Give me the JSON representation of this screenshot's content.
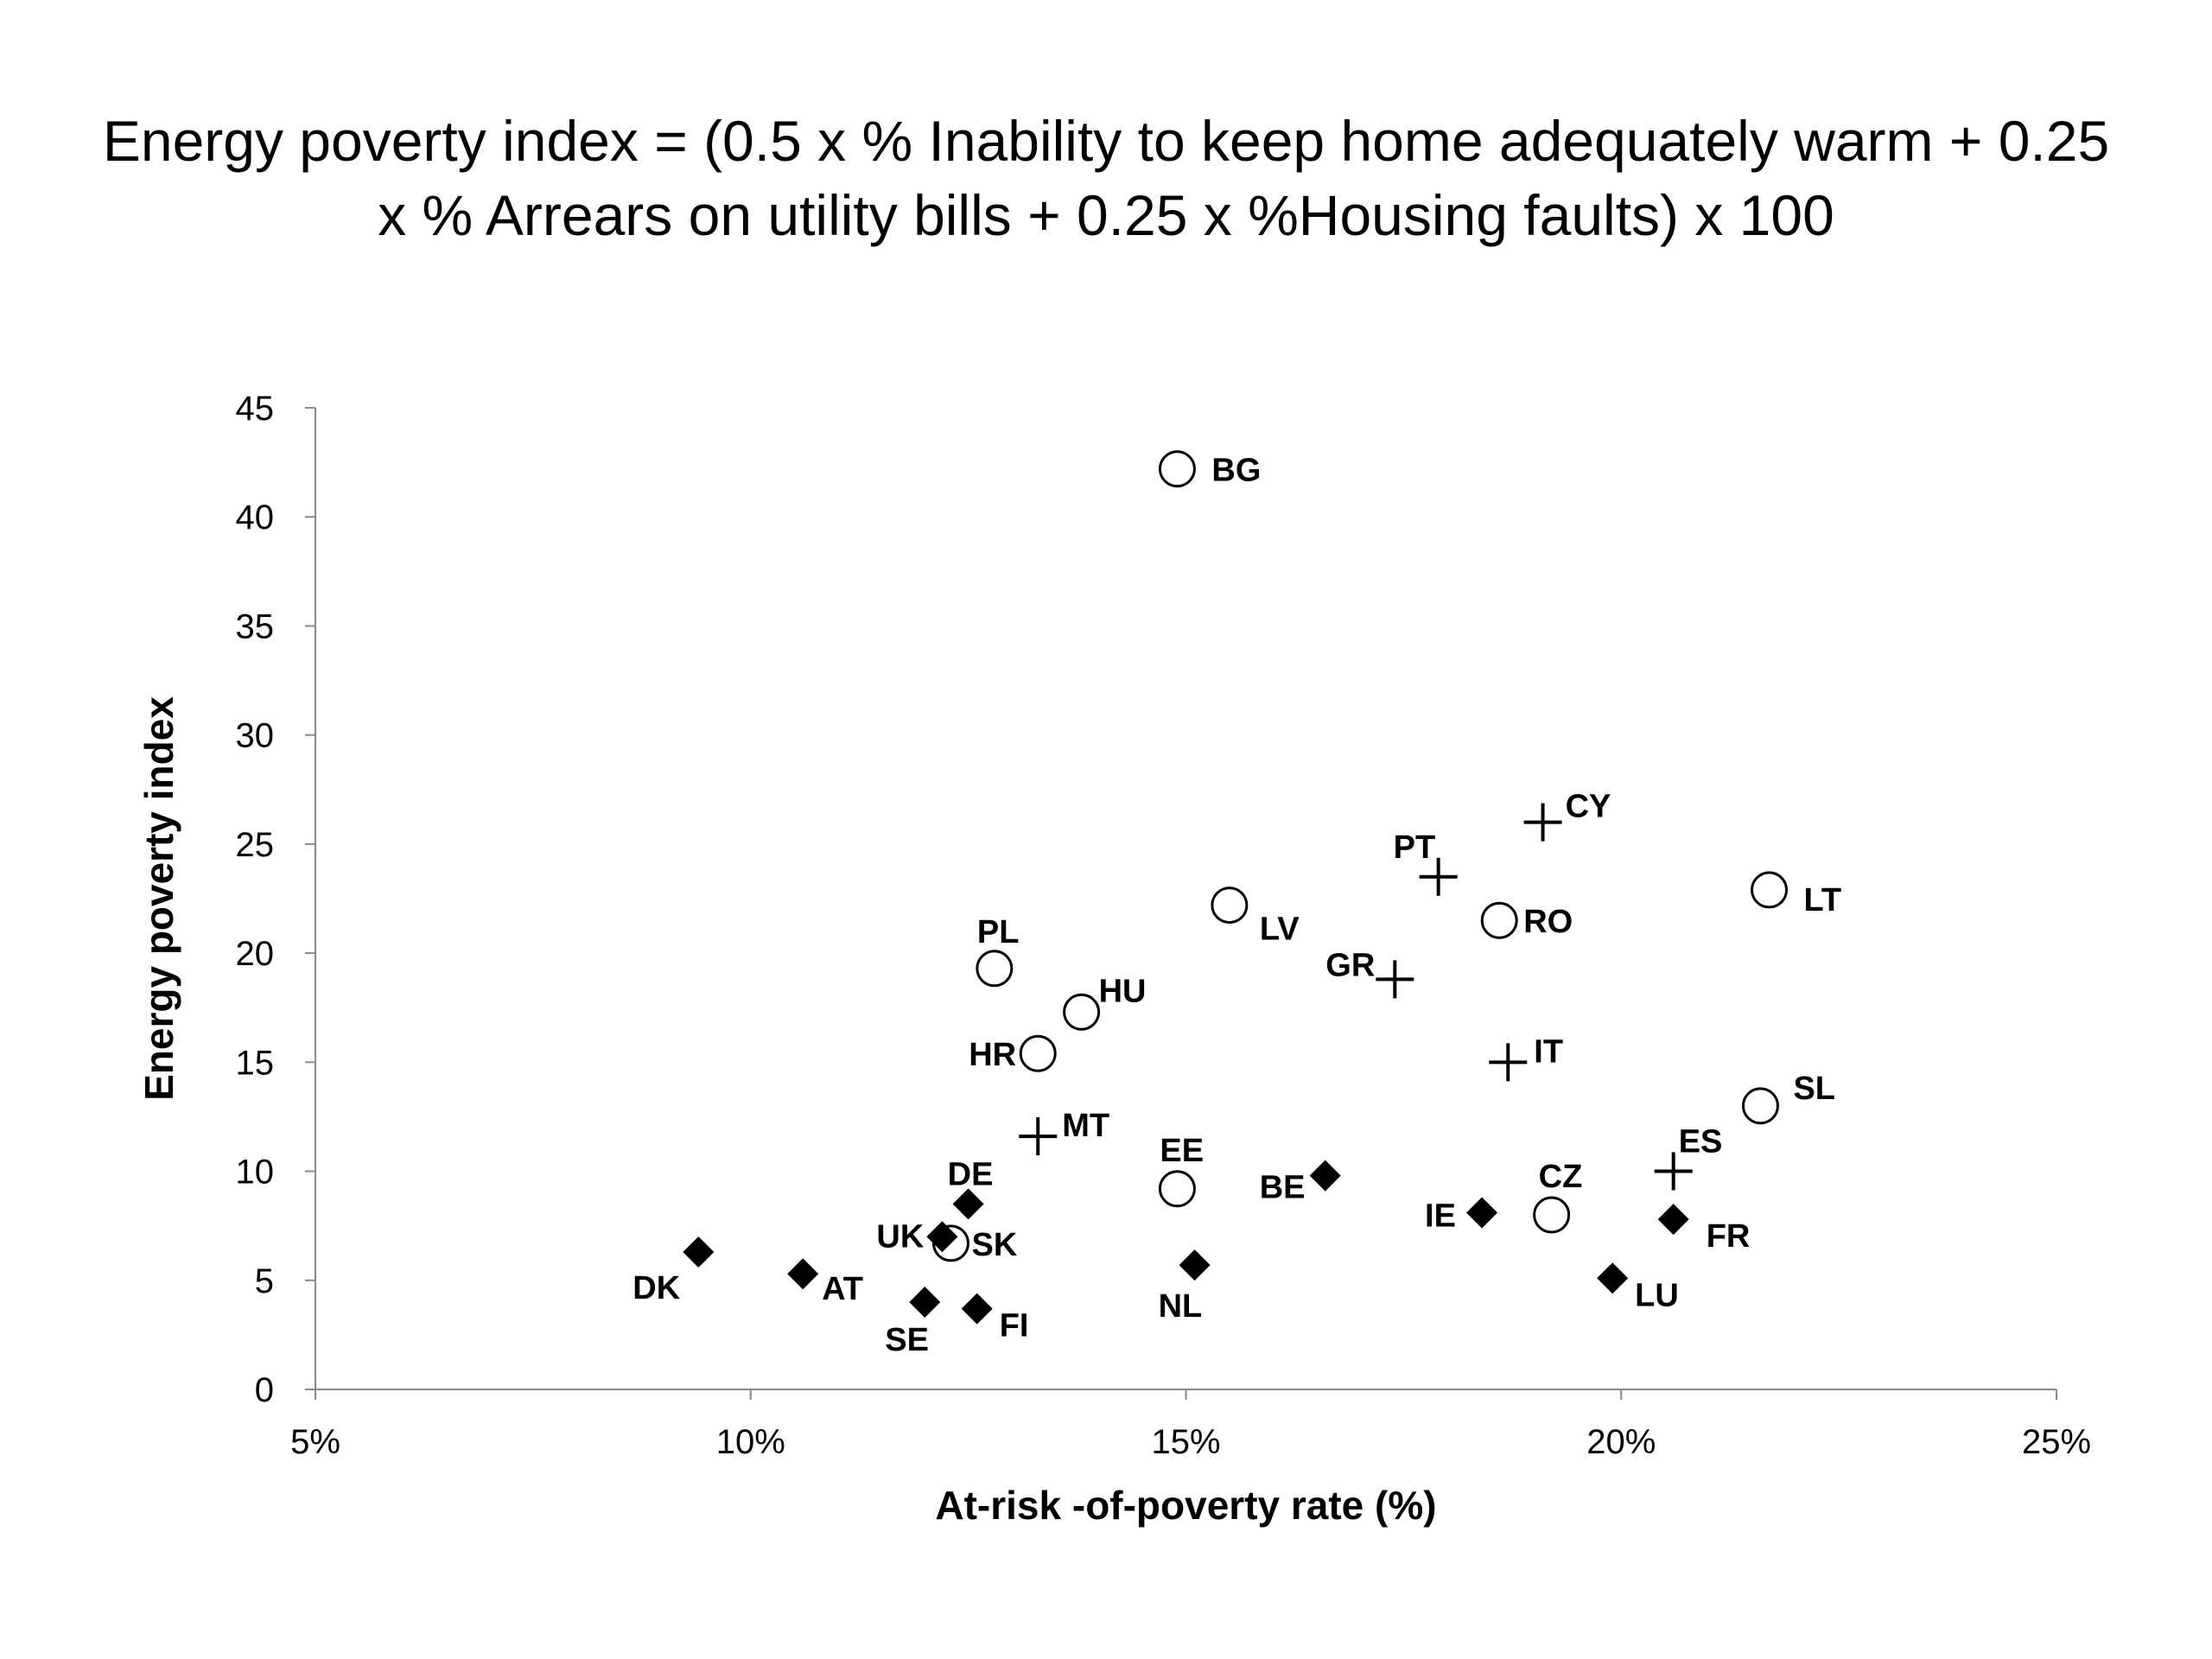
{
  "title_lines": [
    "Energy poverty index = (0.5 x % Inability to keep home adequately warm + 0.25",
    "x % Arrears on utility bills + 0.25 x %Housing faults) x 100"
  ],
  "chart_data": {
    "type": "scatter",
    "title": "Energy poverty index = (0.5 x % Inability to keep home adequately warm + 0.25 x % Arrears on utility bills + 0.25 x %Housing faults) x 100",
    "xlabel": "At-risk -of-poverty rate (%)",
    "ylabel": "Energy poverty index",
    "xlim": [
      5,
      25
    ],
    "ylim": [
      0,
      45
    ],
    "x_ticks": [
      5,
      10,
      15,
      20,
      25
    ],
    "x_tick_labels": [
      "5%",
      "10%",
      "15%",
      "20%",
      "25%"
    ],
    "y_ticks": [
      0,
      5,
      10,
      15,
      20,
      25,
      30,
      35,
      40,
      45
    ],
    "grid": false,
    "legend": "none",
    "marker_styles": {
      "circle": "open-circle",
      "plus": "plus",
      "diamond": "filled-diamond"
    },
    "points": [
      {
        "label": "BG",
        "x": 14.9,
        "y": 42.2,
        "marker": "circle",
        "lx": 40,
        "ly": 14
      },
      {
        "label": "LT",
        "x": 21.7,
        "y": 22.9,
        "marker": "circle",
        "lx": 40,
        "ly": 24
      },
      {
        "label": "LV",
        "x": 15.5,
        "y": 22.2,
        "marker": "circle",
        "lx": 35,
        "ly": 40
      },
      {
        "label": "RO",
        "x": 18.6,
        "y": 21.5,
        "marker": "circle",
        "lx": 28,
        "ly": 14
      },
      {
        "label": "PL",
        "x": 12.8,
        "y": 19.3,
        "marker": "circle",
        "lx": -20,
        "ly": -30
      },
      {
        "label": "HU",
        "x": 13.8,
        "y": 17.3,
        "marker": "circle",
        "lx": 20,
        "ly": -12
      },
      {
        "label": "HR",
        "x": 13.3,
        "y": 15.4,
        "marker": "circle",
        "lx": -80,
        "ly": 14
      },
      {
        "label": "SL",
        "x": 21.6,
        "y": 13.0,
        "marker": "circle",
        "lx": 38,
        "ly": -8
      },
      {
        "label": "EE",
        "x": 14.9,
        "y": 9.2,
        "marker": "circle",
        "lx": -20,
        "ly": -32
      },
      {
        "label": "CZ",
        "x": 19.2,
        "y": 8.0,
        "marker": "circle",
        "lx": -15,
        "ly": -32
      },
      {
        "label": "SK",
        "x": 12.3,
        "y": 6.7,
        "marker": "circle",
        "lx": 24,
        "ly": 14
      },
      {
        "label": "CY",
        "x": 19.1,
        "y": 26.0,
        "marker": "plus",
        "lx": 26,
        "ly": -6
      },
      {
        "label": "PT",
        "x": 17.9,
        "y": 23.5,
        "marker": "plus",
        "lx": -52,
        "ly": -22
      },
      {
        "label": "GR",
        "x": 17.4,
        "y": 18.8,
        "marker": "plus",
        "lx": -80,
        "ly": -4
      },
      {
        "label": "IT",
        "x": 18.7,
        "y": 15.0,
        "marker": "plus",
        "lx": 30,
        "ly": 0
      },
      {
        "label": "ES",
        "x": 20.6,
        "y": 10.0,
        "marker": "plus",
        "lx": 6,
        "ly": -22
      },
      {
        "label": "MT",
        "x": 13.3,
        "y": 11.6,
        "marker": "plus",
        "lx": 28,
        "ly": 0
      },
      {
        "label": "DE",
        "x": 12.5,
        "y": 8.5,
        "marker": "diamond",
        "lx": -24,
        "ly": -22
      },
      {
        "label": "BE",
        "x": 16.6,
        "y": 9.8,
        "marker": "diamond",
        "lx": -76,
        "ly": 26
      },
      {
        "label": "IE",
        "x": 18.4,
        "y": 8.1,
        "marker": "diamond",
        "lx": -66,
        "ly": 16
      },
      {
        "label": "FR",
        "x": 20.6,
        "y": 7.8,
        "marker": "diamond",
        "lx": 38,
        "ly": 32
      },
      {
        "label": "UK",
        "x": 12.2,
        "y": 7.0,
        "marker": "diamond",
        "lx": -76,
        "ly": 12
      },
      {
        "label": "DK",
        "x": 9.4,
        "y": 6.3,
        "marker": "diamond",
        "lx": -76,
        "ly": 54
      },
      {
        "label": "AT",
        "x": 10.6,
        "y": 5.3,
        "marker": "diamond",
        "lx": 22,
        "ly": 30
      },
      {
        "label": "NL",
        "x": 15.1,
        "y": 5.7,
        "marker": "diamond",
        "lx": -42,
        "ly": 60
      },
      {
        "label": "LU",
        "x": 19.9,
        "y": 5.1,
        "marker": "diamond",
        "lx": 26,
        "ly": 32
      },
      {
        "label": "SE",
        "x": 12.0,
        "y": 4.0,
        "marker": "diamond",
        "lx": -46,
        "ly": 56
      },
      {
        "label": "FI",
        "x": 12.6,
        "y": 3.7,
        "marker": "diamond",
        "lx": 26,
        "ly": 32
      }
    ]
  }
}
